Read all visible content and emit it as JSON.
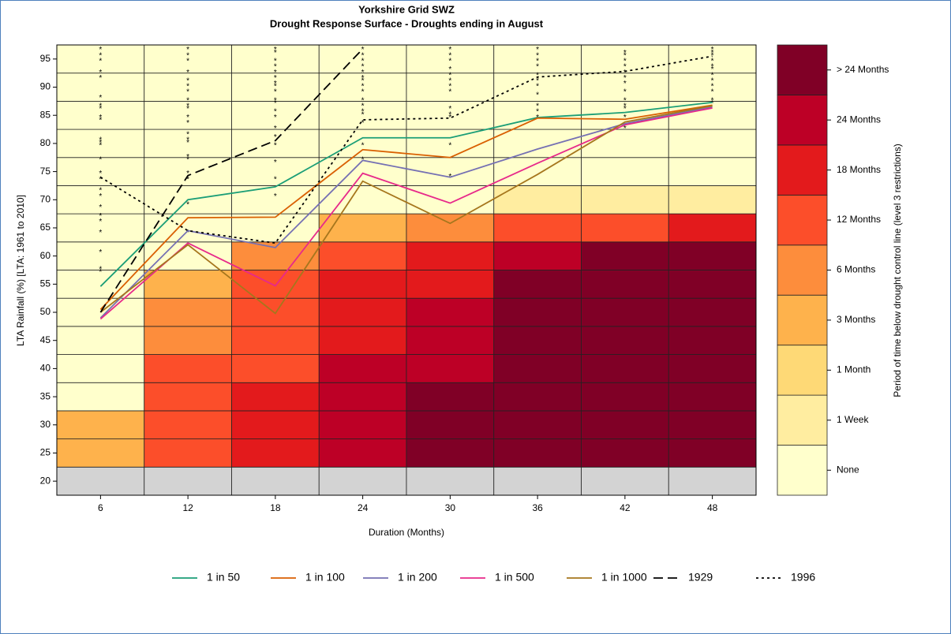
{
  "chart_data": {
    "type": "heatmap",
    "title": "Yorkshire Grid SWZ",
    "subtitle": "Drought Response Surface - Droughts ending in August",
    "x_label": "Duration (Months)",
    "y_label": "LTA Rainfall (%) [LTA: 1961 to 2010]",
    "colorbar_label": "Period of time below drought control line (level 3 restrictions)",
    "x": [
      6,
      12,
      18,
      24,
      30,
      36,
      42,
      48
    ],
    "y": [
      20,
      25,
      30,
      35,
      40,
      45,
      50,
      55,
      60,
      65,
      70,
      75,
      80,
      85,
      90,
      95
    ],
    "xlim": [
      3,
      51
    ],
    "ylim": [
      17.5,
      97.5
    ],
    "xticks": [
      6,
      12,
      18,
      24,
      30,
      36,
      42,
      48
    ],
    "yticks": [
      20,
      25,
      30,
      35,
      40,
      45,
      50,
      55,
      60,
      65,
      70,
      75,
      80,
      85,
      90,
      95
    ],
    "levels": [
      "None",
      "1 Week",
      "1 Month",
      "3 Months",
      "6 Months",
      "12 Months",
      "18 Months",
      "24 Months",
      "> 24 Months"
    ],
    "level_colors": [
      "#ffffcc",
      "#ffeda0",
      "#fed976",
      "#feb24c",
      "#fd8d3c",
      "#fc4e2a",
      "#e31a1c",
      "#bd0026",
      "#800026"
    ],
    "na_color": "#d3d3d3",
    "cells": [
      [
        null,
        "3 Months",
        "3 Months",
        "None",
        "None",
        "None",
        "None",
        "None",
        "None",
        "None",
        "None",
        "None",
        "None",
        "None",
        "None",
        "None"
      ],
      [
        null,
        "12 Months",
        "12 Months",
        "12 Months",
        "12 Months",
        "6 Months",
        "6 Months",
        "3 Months",
        "None",
        "None",
        "None",
        "None",
        "None",
        "None",
        "None",
        "None"
      ],
      [
        null,
        "18 Months",
        "18 Months",
        "18 Months",
        "12 Months",
        "12 Months",
        "12 Months",
        "12 Months",
        "6 Months",
        "None",
        "None",
        "None",
        "None",
        "None",
        "None",
        "None"
      ],
      [
        null,
        "24 Months",
        "24 Months",
        "24 Months",
        "24 Months",
        "18 Months",
        "18 Months",
        "18 Months",
        "12 Months",
        "3 Months",
        "None",
        "None",
        "None",
        "None",
        "None",
        "None"
      ],
      [
        null,
        "> 24 Months",
        "> 24 Months",
        "> 24 Months",
        "24 Months",
        "24 Months",
        "24 Months",
        "18 Months",
        "18 Months",
        "6 Months",
        "None",
        "None",
        "None",
        "None",
        "None",
        "None"
      ],
      [
        null,
        "> 24 Months",
        "> 24 Months",
        "> 24 Months",
        "> 24 Months",
        "> 24 Months",
        "> 24 Months",
        "> 24 Months",
        "24 Months",
        "12 Months",
        "1 Week",
        "None",
        "None",
        "None",
        "None",
        "None"
      ],
      [
        null,
        "> 24 Months",
        "> 24 Months",
        "> 24 Months",
        "> 24 Months",
        "> 24 Months",
        "> 24 Months",
        "> 24 Months",
        "> 24 Months",
        "12 Months",
        "1 Week",
        "None",
        "None",
        "None",
        "None",
        "None"
      ],
      [
        null,
        "> 24 Months",
        "> 24 Months",
        "> 24 Months",
        "> 24 Months",
        "> 24 Months",
        "> 24 Months",
        "> 24 Months",
        "> 24 Months",
        "18 Months",
        "1 Week",
        "None",
        "None",
        "None",
        "None",
        "None"
      ]
    ],
    "series": [
      {
        "name": "1 in 50",
        "color": "#1b9e77",
        "dash": "solid",
        "values": [
          54.6,
          70,
          72.3,
          81,
          81,
          84.6,
          85.5,
          87.3
        ]
      },
      {
        "name": "1 in 100",
        "color": "#d95f02",
        "dash": "solid",
        "values": [
          50.5,
          66.8,
          66.9,
          78.9,
          77.5,
          84.5,
          84.3,
          86.8
        ]
      },
      {
        "name": "1 in 200",
        "color": "#7570b3",
        "dash": "solid",
        "values": [
          49,
          64.5,
          61.5,
          77,
          74,
          79,
          83.5,
          86.5
        ]
      },
      {
        "name": "1 in 500",
        "color": "#e7298a",
        "dash": "solid",
        "values": [
          48.8,
          62.3,
          54.7,
          74.7,
          69.4,
          76.5,
          83.3,
          86.3
        ]
      },
      {
        "name": "1 in 1000",
        "color": "#a6761d",
        "dash": "solid",
        "values": [
          50,
          62,
          49.8,
          73.3,
          65.8,
          74.5,
          83.8,
          86.7
        ]
      },
      {
        "name": "1929",
        "color": "#000000",
        "dash": "dashed",
        "values": [
          50,
          74.3,
          80.5,
          96.8,
          null,
          null,
          null,
          null
        ]
      },
      {
        "name": "1996",
        "color": "#000000",
        "dash": "dotted",
        "values": [
          74,
          64.5,
          62.3,
          84.2,
          84.5,
          91.8,
          92.8,
          95.5
        ]
      }
    ],
    "events": [
      [
        97,
        96,
        95,
        93,
        92,
        88.5,
        87,
        86.5,
        85,
        84.5,
        81,
        80.5,
        80,
        77.5,
        75,
        74,
        72,
        71,
        69,
        67.5,
        66.5,
        64.5,
        61,
        58,
        57.5
      ],
      [
        97,
        96,
        95,
        93,
        91.5,
        90.5,
        89.5,
        88,
        87,
        86.5,
        85,
        84,
        82,
        81,
        80.5,
        78,
        77.5,
        75,
        74,
        69.5,
        64.5
      ],
      [
        97,
        96.5,
        95,
        94,
        93,
        92,
        91,
        90.5,
        89.5,
        88,
        87.5,
        86,
        85,
        83,
        81.5,
        80,
        77,
        74,
        71
      ],
      [
        97,
        96,
        95,
        94,
        93,
        92,
        91.5,
        90.5,
        89.5,
        88,
        87,
        86,
        85.5,
        84,
        80,
        77.5
      ],
      [
        97,
        96,
        95,
        93.5,
        92.5,
        91.5,
        90.5,
        89.5,
        86.5,
        85.5,
        85,
        80,
        74.5
      ],
      [
        97,
        96,
        95,
        94,
        92.5,
        91.5,
        90.5,
        89,
        87,
        86,
        85
      ],
      [
        96.5,
        96,
        95,
        94,
        93,
        92,
        91,
        89.5,
        88,
        87,
        86.5,
        85,
        83
      ],
      [
        97,
        96.5,
        96,
        95,
        94,
        93.5,
        92.5,
        91.5,
        90.5,
        89.5,
        88,
        87.5
      ]
    ]
  }
}
